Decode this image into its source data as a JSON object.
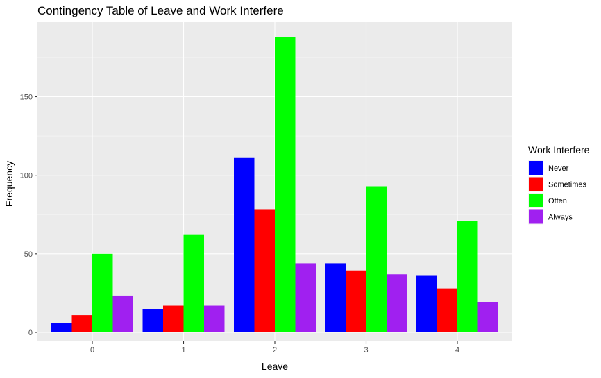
{
  "chart_data": {
    "type": "bar",
    "title": "Contingency Table of Leave and Work Interfere",
    "xlabel": "Leave",
    "ylabel": "Frequency",
    "categories": [
      "0",
      "1",
      "2",
      "3",
      "4"
    ],
    "y_ticks": [
      "0",
      "50",
      "100",
      "150"
    ],
    "ylim": [
      0,
      196
    ],
    "grid": true,
    "legend": {
      "title": "Work Interfere",
      "position": "right"
    },
    "series": [
      {
        "name": "Never",
        "color": "#0000ff",
        "values": [
          6,
          15,
          111,
          44,
          36
        ]
      },
      {
        "name": "Sometimes",
        "color": "#ff0000",
        "values": [
          11,
          17,
          78,
          39,
          28
        ]
      },
      {
        "name": "Often",
        "color": "#00ff00",
        "values": [
          50,
          62,
          188,
          93,
          71
        ]
      },
      {
        "name": "Always",
        "color": "#a020f0",
        "values": [
          23,
          17,
          44,
          37,
          19
        ]
      }
    ]
  }
}
